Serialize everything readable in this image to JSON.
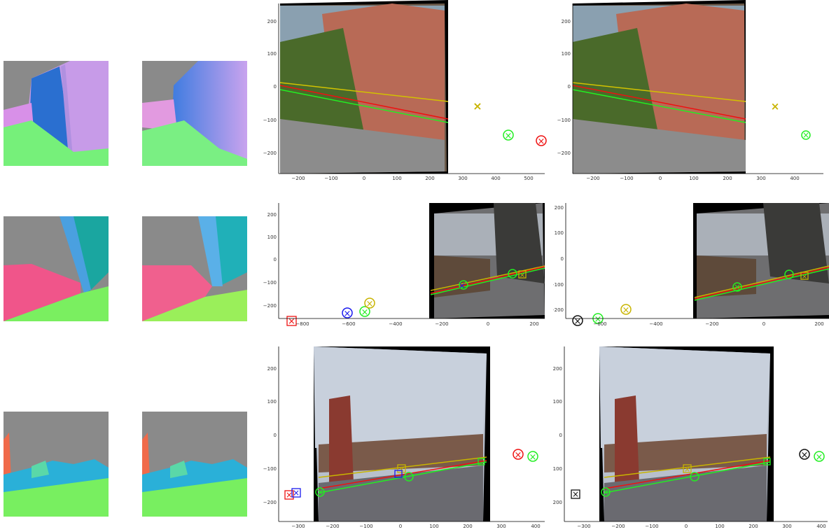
{
  "rows": [
    {
      "id": "row1",
      "plots": [
        {
          "x_ticks": [
            "−200",
            "−100",
            "0",
            "100",
            "200",
            "300",
            "400",
            "500"
          ],
          "y_ticks": [
            "200",
            "100",
            "0",
            "−100",
            "−200"
          ]
        },
        {
          "x_ticks": [
            "−200",
            "−100",
            "0",
            "100",
            "200",
            "300",
            "400"
          ],
          "y_ticks": [
            "200",
            "100",
            "0",
            "−100",
            "−200"
          ]
        }
      ]
    },
    {
      "id": "row2",
      "plots": [
        {
          "x_ticks": [
            "−800",
            "−600",
            "−400",
            "−200",
            "0",
            "200"
          ],
          "y_ticks": [
            "200",
            "100",
            "0",
            "−100",
            "−200"
          ]
        },
        {
          "x_ticks": [
            "−600",
            "−400",
            "−200",
            "0",
            "200"
          ],
          "y_ticks": [
            "200",
            "100",
            "0",
            "−100",
            "−200"
          ]
        }
      ]
    },
    {
      "id": "row3",
      "plots": [
        {
          "x_ticks": [
            "−300",
            "−200",
            "−100",
            "0",
            "100",
            "200",
            "300",
            "400"
          ],
          "y_ticks": [
            "200",
            "100",
            "0",
            "−100",
            "−200"
          ]
        },
        {
          "x_ticks": [
            "−300",
            "−200",
            "−100",
            "0",
            "100",
            "200",
            "300",
            "400"
          ],
          "y_ticks": [
            "200",
            "100",
            "0",
            "−100",
            "−200"
          ]
        }
      ]
    }
  ],
  "colors": {
    "red": "#ee1111",
    "green": "#22ee22",
    "yellow": "#c8b400",
    "blue": "#1a1aee",
    "black": "#111111"
  }
}
